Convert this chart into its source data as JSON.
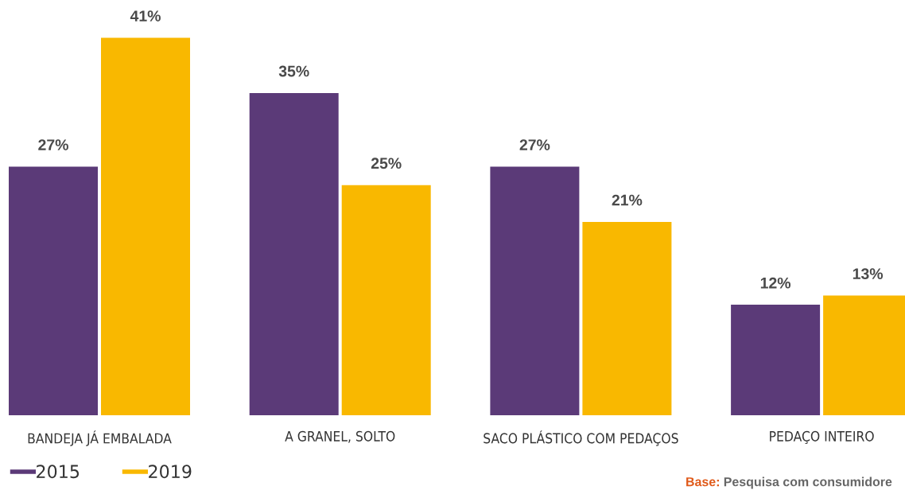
{
  "chart_data": {
    "type": "bar",
    "categories": [
      "BANDEJA JÁ EMBALADA",
      "A GRANEL, SOLTO",
      "SACO PLÁSTICO COM PEDAÇOS",
      "PEDAÇO INTEIRO"
    ],
    "series": [
      {
        "name": "2015",
        "color": "#5b3a78",
        "values": [
          27,
          35,
          27,
          12
        ],
        "value_labels": [
          "27%",
          "35%",
          "27%",
          "12%"
        ]
      },
      {
        "name": "2019",
        "color": "#f9b800",
        "values": [
          41,
          25,
          21,
          13
        ],
        "value_labels": [
          "41%",
          "25%",
          "21%",
          "13%"
        ]
      }
    ],
    "legend": "bottom left",
    "annotations": [
      "Base:",
      "Pesquisa com consumidore"
    ]
  }
}
